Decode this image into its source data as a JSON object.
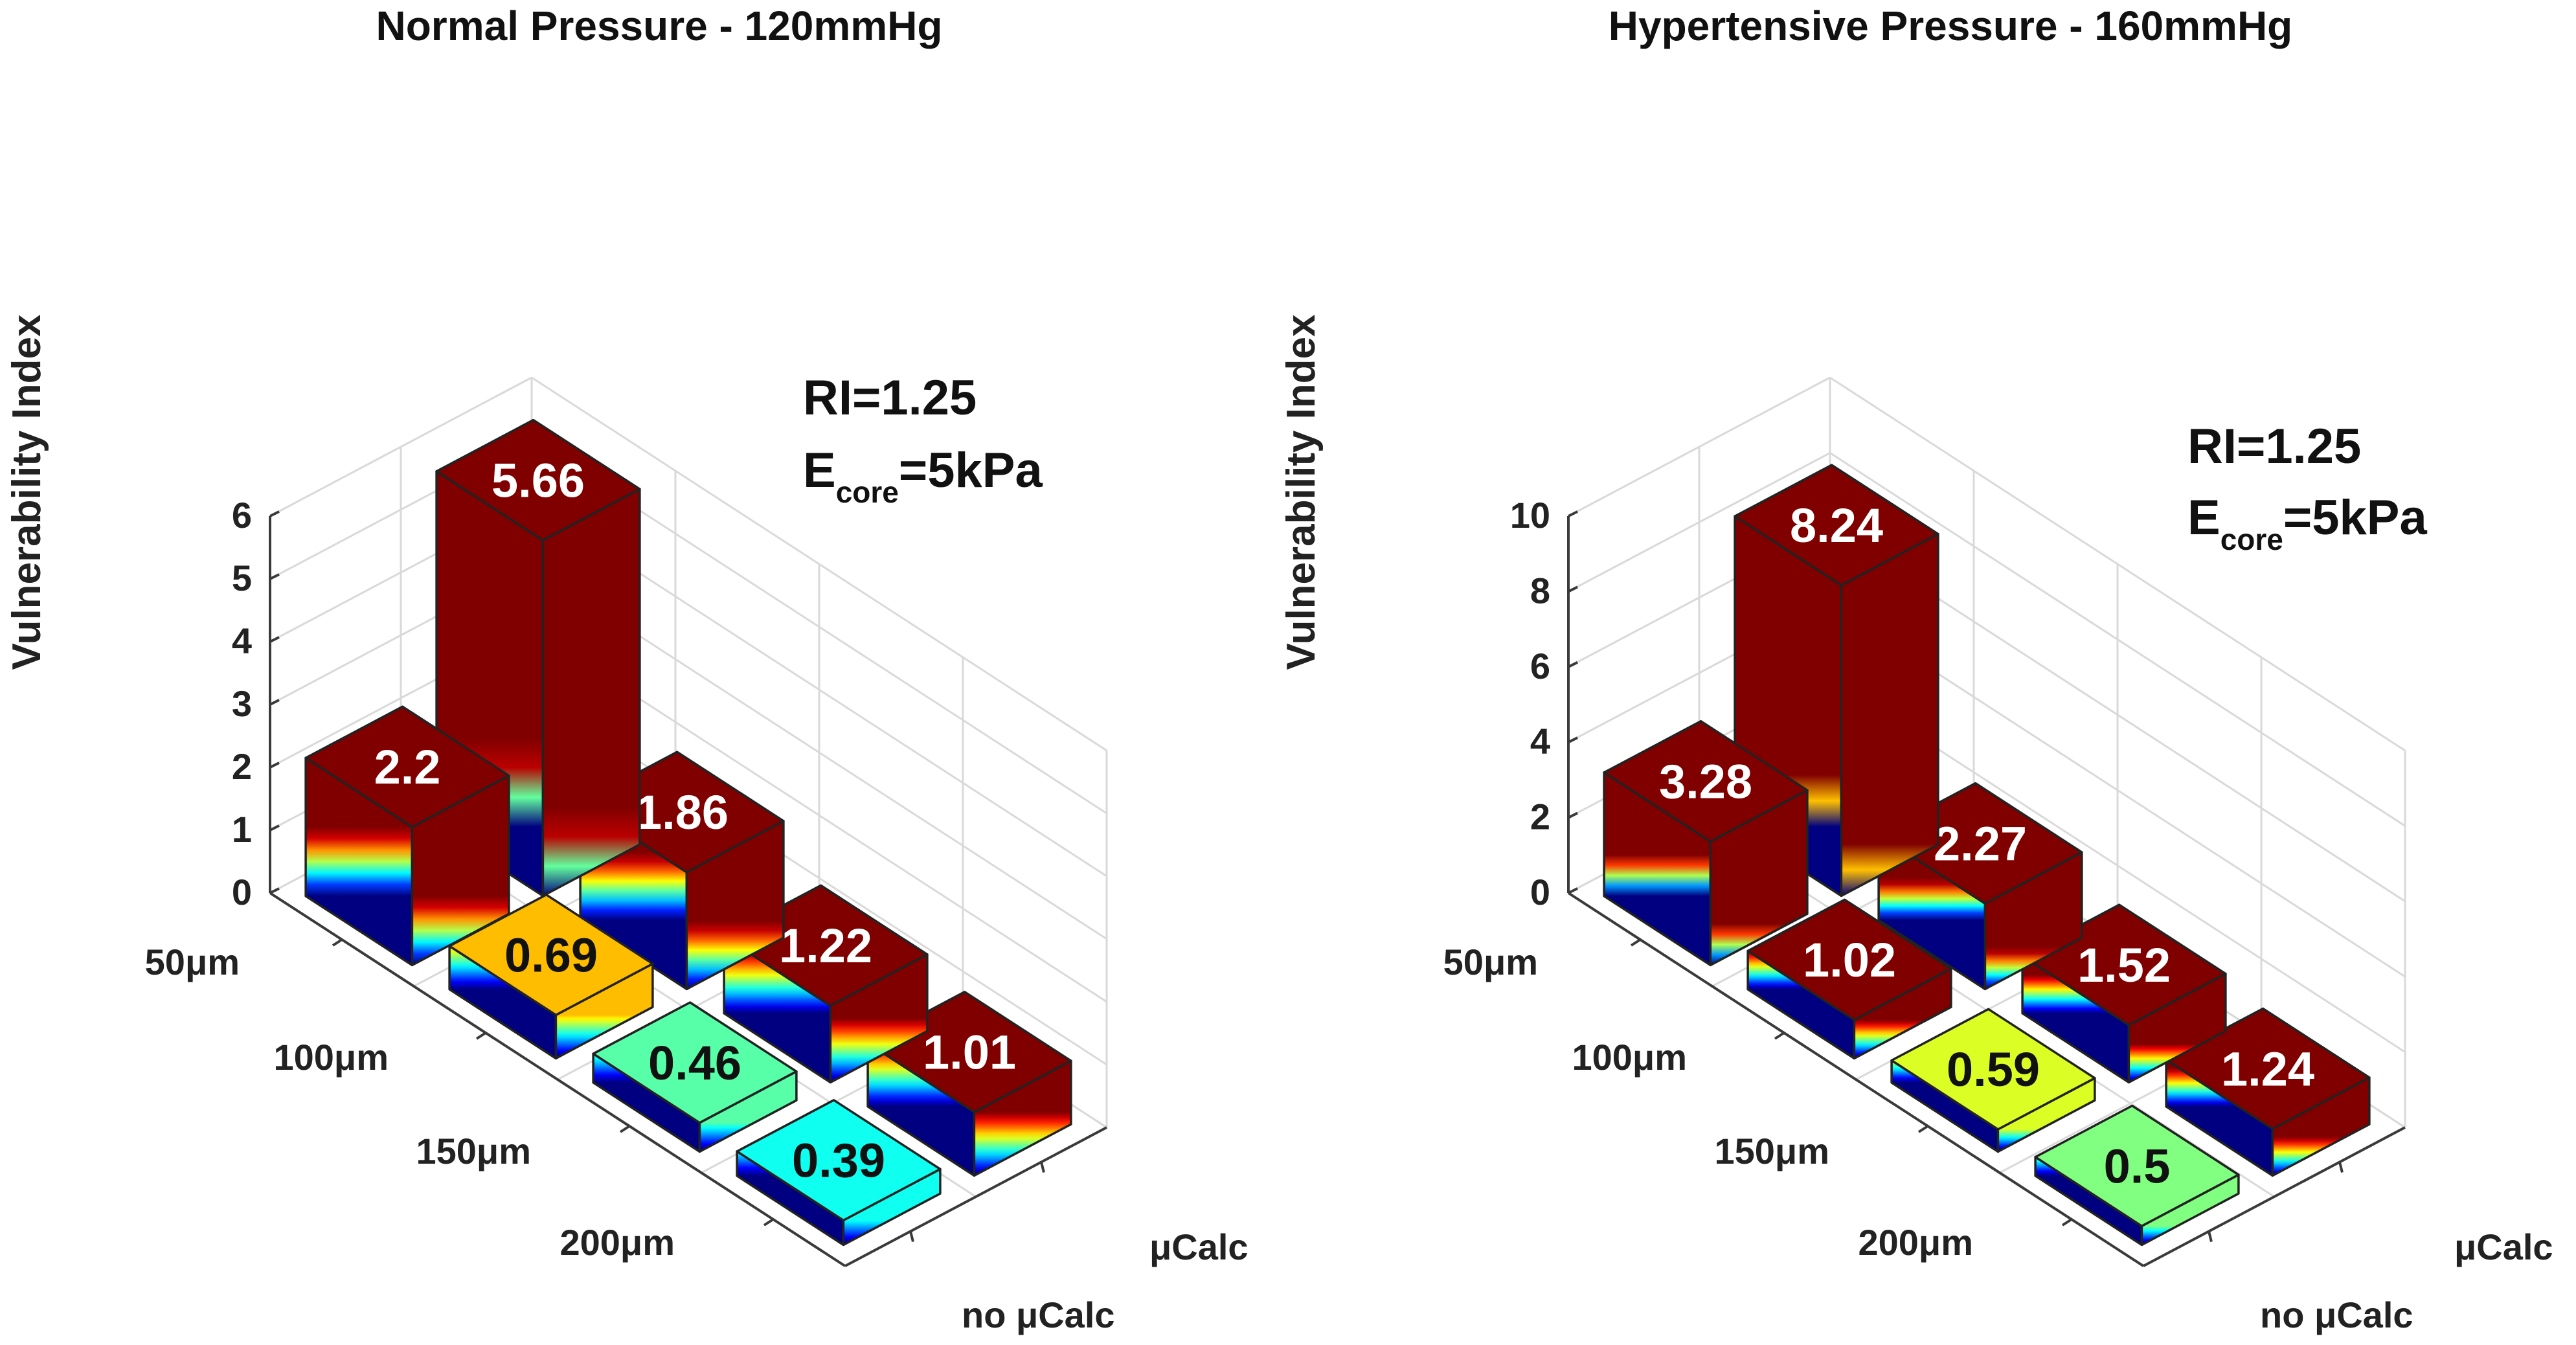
{
  "colors": {
    "tall_bar": "#800000",
    "jet_scale": [
      "#000080",
      "#0000ff",
      "#0080ff",
      "#00ffff",
      "#80ff80",
      "#ffff00",
      "#ff8000",
      "#ff0000",
      "#800000"
    ]
  },
  "chart_data": [
    {
      "type": "bar3d",
      "title": "Normal Pressure - 120mmHg",
      "ylabel": "Vulnerability Index",
      "zlim": [
        0,
        6
      ],
      "zticks": [
        "0",
        "1",
        "2",
        "3",
        "4",
        "5",
        "6"
      ],
      "rows": [
        "50μm",
        "100μm",
        "150μm",
        "200μm"
      ],
      "columns": [
        "no μCalc",
        "μCalc"
      ],
      "values": [
        [
          2.2,
          5.66
        ],
        [
          0.69,
          1.86
        ],
        [
          0.46,
          1.22
        ],
        [
          0.39,
          1.01
        ]
      ],
      "value_labels": [
        [
          "2.2",
          "5.66"
        ],
        [
          "0.69",
          "1.86"
        ],
        [
          "0.46",
          "1.22"
        ],
        [
          "0.39",
          "1.01"
        ]
      ],
      "annotation": {
        "line1": "RI=1.25",
        "e_main": "E",
        "e_sub": "core",
        "e_rest": "=5kPa"
      }
    },
    {
      "type": "bar3d",
      "title": "Hypertensive Pressure - 160mmHg",
      "ylabel": "Vulnerability Index",
      "zlim": [
        0,
        10
      ],
      "zticks": [
        "0",
        "2",
        "4",
        "6",
        "8",
        "10"
      ],
      "rows": [
        "50μm",
        "100μm",
        "150μm",
        "200μm"
      ],
      "columns": [
        "no μCalc",
        "μCalc"
      ],
      "values": [
        [
          3.28,
          8.24
        ],
        [
          1.02,
          2.27
        ],
        [
          0.59,
          1.52
        ],
        [
          0.5,
          1.24
        ]
      ],
      "value_labels": [
        [
          "3.28",
          "8.24"
        ],
        [
          "1.02",
          "2.27"
        ],
        [
          "0.59",
          "1.52"
        ],
        [
          "0.5",
          "1.24"
        ]
      ],
      "annotation": {
        "line1": "RI=1.25",
        "e_main": "E",
        "e_sub": "core",
        "e_rest": "=5kPa"
      }
    }
  ]
}
